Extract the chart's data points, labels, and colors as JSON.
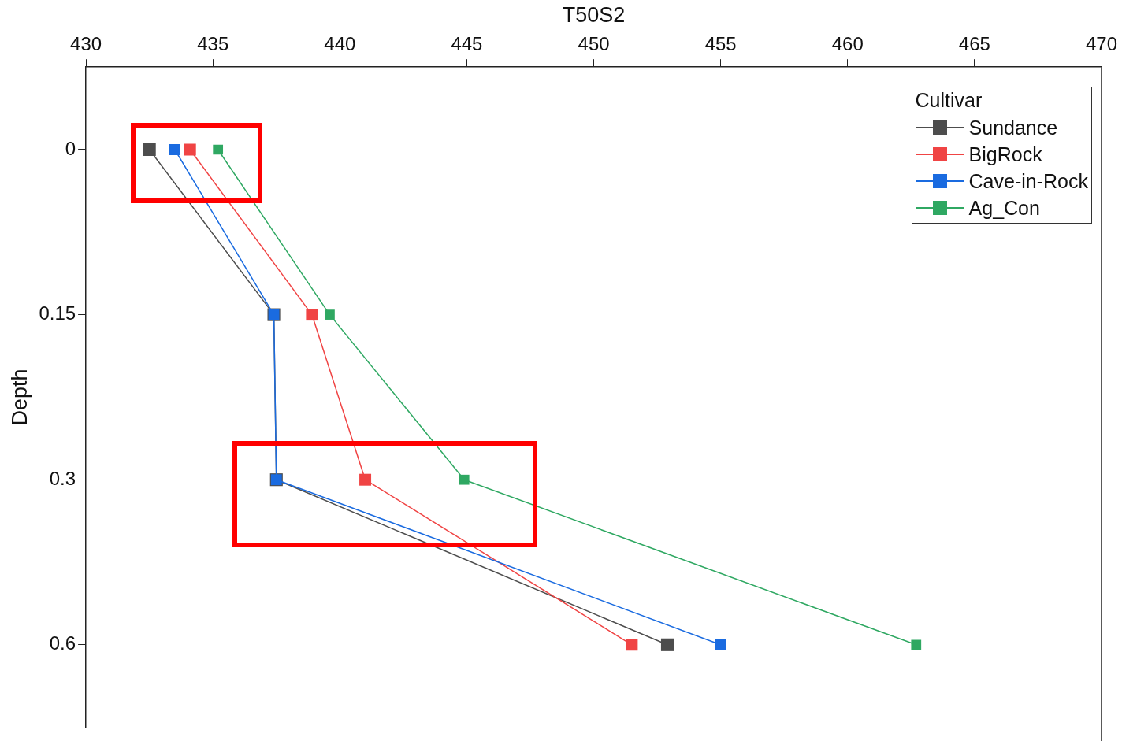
{
  "chart_data": {
    "type": "line",
    "xlabel": "T50S2",
    "ylabel": "Depth",
    "legend_title": "Cultivar",
    "categories": [
      "0",
      "0.15",
      "0.3",
      "0.6"
    ],
    "orientation": "horizontal",
    "xlim": [
      430,
      470
    ],
    "xticks": [
      430,
      435,
      440,
      445,
      450,
      455,
      460,
      465,
      470
    ],
    "grid": false,
    "legend": "top right",
    "marker": "square",
    "line_style": "solid",
    "series": [
      {
        "name": "Sundance",
        "color": "#4d4d4d",
        "values": [
          432.5,
          437.4,
          437.5,
          452.9
        ]
      },
      {
        "name": "BigRock",
        "color": "#f04444",
        "values": [
          434.1,
          438.9,
          441.0,
          451.5
        ]
      },
      {
        "name": "Cave-in-Rock",
        "color": "#1a6be0",
        "values": [
          433.5,
          437.4,
          437.5,
          455.0
        ]
      },
      {
        "name": "Ag_Con",
        "color": "#2fa862",
        "values": [
          435.2,
          439.6,
          444.9,
          462.7
        ]
      }
    ]
  }
}
